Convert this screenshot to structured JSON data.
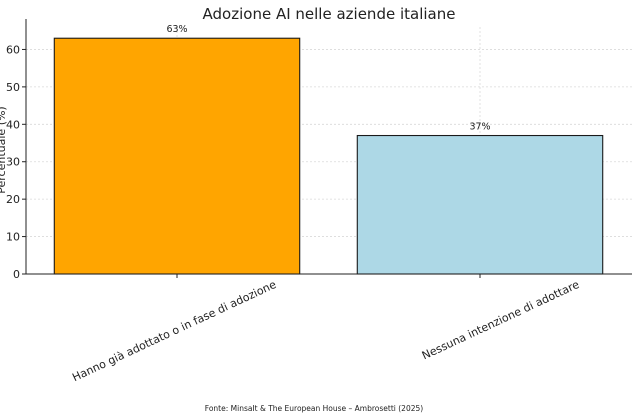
{
  "chart_data": {
    "type": "bar",
    "title": "Adozione AI nelle aziende italiane",
    "ylabel": "Percentuale (%)",
    "xlabel": "",
    "categories": [
      "Hanno già adottato o in fase di adozione",
      "Nessuna intenzione di adottare"
    ],
    "values": [
      63,
      37
    ],
    "value_labels": [
      "63%",
      "37%"
    ],
    "colors": [
      "#FFA500",
      "#ADD8E6"
    ],
    "ylim": [
      0,
      66
    ],
    "yticks": [
      0,
      10,
      20,
      30,
      40,
      50,
      60
    ],
    "grid": true
  },
  "footer": "Fonte: MinsaIt & The European House – Ambrosetti (2025)"
}
